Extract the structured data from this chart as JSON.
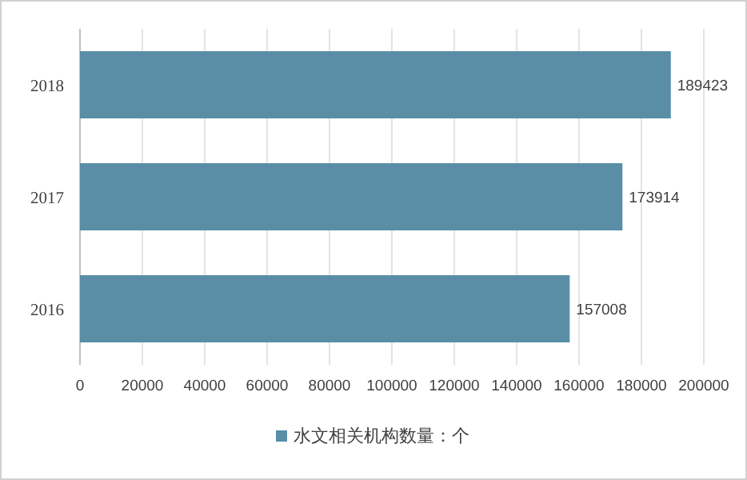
{
  "chart_data": {
    "type": "bar",
    "orientation": "horizontal",
    "categories": [
      "2018",
      "2017",
      "2016"
    ],
    "series": [
      {
        "name": "水文相关机构数量：个",
        "color": "#5a8ea6",
        "values": [
          189423,
          173914,
          157008
        ]
      }
    ],
    "xlim": [
      0,
      200000
    ],
    "xticks": [
      0,
      20000,
      40000,
      60000,
      80000,
      100000,
      120000,
      140000,
      160000,
      180000,
      200000
    ],
    "grid": "x",
    "legend": "bottom",
    "data_labels": true
  }
}
